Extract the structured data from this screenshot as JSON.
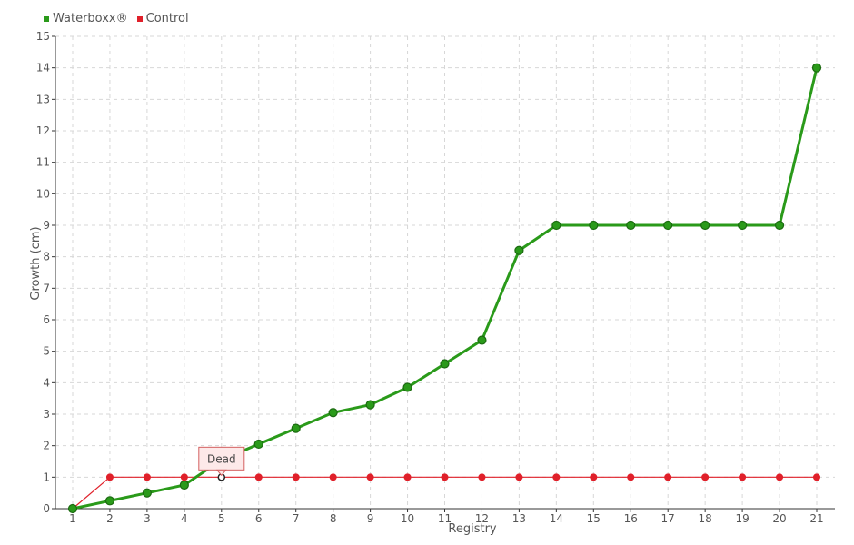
{
  "chart_data": {
    "type": "line",
    "x": [
      1,
      2,
      3,
      4,
      5,
      6,
      7,
      8,
      9,
      10,
      11,
      12,
      13,
      14,
      15,
      16,
      17,
      18,
      19,
      20,
      21
    ],
    "xlabel": "Registry",
    "ylabel": "Growth (cm)",
    "ylim": [
      0,
      15
    ],
    "yticks": [
      0,
      1,
      2,
      3,
      4,
      5,
      6,
      7,
      8,
      9,
      10,
      11,
      12,
      13,
      14,
      15
    ],
    "grid": true,
    "legend_position": "top-left",
    "series": [
      {
        "name": "Waterboxx®",
        "color": "#2a9a1a",
        "values": [
          0,
          0.25,
          0.5,
          0.75,
          1.55,
          2.05,
          2.55,
          3.05,
          3.3,
          3.85,
          4.6,
          5.35,
          8.2,
          9,
          9,
          9,
          9,
          9,
          9,
          9,
          14
        ]
      },
      {
        "name": "Control",
        "color": "#e0202a",
        "values": [
          0,
          1,
          1,
          1,
          1,
          1,
          1,
          1,
          1,
          1,
          1,
          1,
          1,
          1,
          1,
          1,
          1,
          1,
          1,
          1,
          1
        ]
      }
    ],
    "annotation": {
      "text": "Dead",
      "series": 1,
      "x": 5,
      "y": 1
    }
  }
}
